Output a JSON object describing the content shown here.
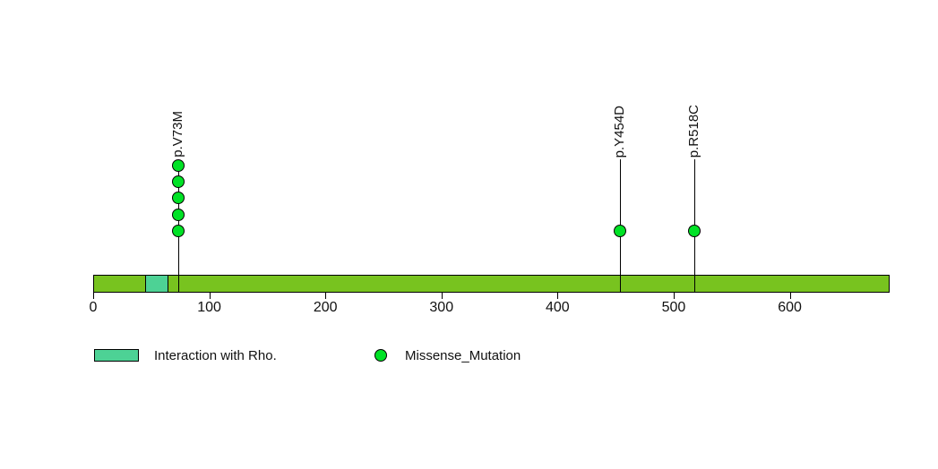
{
  "chart_data": {
    "type": "lollipop",
    "title": "",
    "xlabel": "",
    "ylabel": "",
    "xlim": [
      0,
      686
    ],
    "x_ticks": [
      0,
      100,
      200,
      300,
      400,
      500,
      600
    ],
    "grid": false,
    "background_color": "#ffffff",
    "backbone": {
      "start": 0,
      "end": 686,
      "color": "#78C31F",
      "border_color": "#000000"
    },
    "domains": [
      {
        "label": "Interaction with Rho.",
        "start": 45,
        "end": 65,
        "color": "#4DD295"
      }
    ],
    "mutations": [
      {
        "label": "p.V73M",
        "position": 73,
        "count": 5,
        "type": "Missense_Mutation"
      },
      {
        "label": "p.Y454D",
        "position": 454,
        "count": 1,
        "type": "Missense_Mutation"
      },
      {
        "label": "p.R518C",
        "position": 518,
        "count": 1,
        "type": "Missense_Mutation"
      }
    ],
    "mutation_types": [
      {
        "name": "Missense_Mutation",
        "color": "#00E226"
      }
    ],
    "legend": [
      {
        "swatch": "rect",
        "color": "#4DD295",
        "label": "Interaction with Rho."
      },
      {
        "swatch": "circle",
        "color": "#00E226",
        "label": "Missense_Mutation"
      }
    ],
    "legend_position": "bottom"
  }
}
